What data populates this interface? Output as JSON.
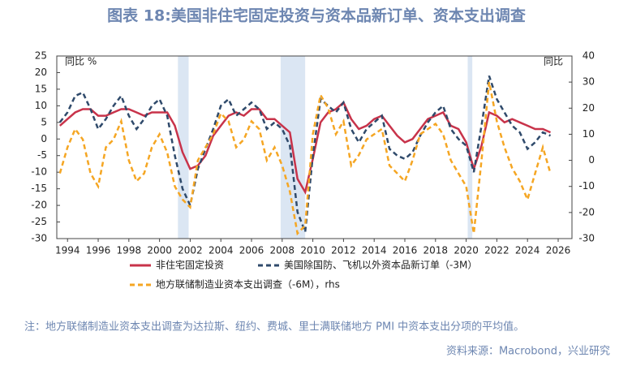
{
  "chart_data": {
    "type": "line",
    "title": "图表 18:美国非住宅固定投资与资本品新订单、资本支出调查",
    "y_label": "同比 %",
    "y2_label": "同比",
    "note": "注：地方联储制造业资本支出调查为达拉斯、纽约、费城、里士满联储地方 PMI 中资本支出分项的平均值。",
    "source": "资料来源：Macrobond，兴业研究",
    "xlim": [
      1993.3,
      2026.9
    ],
    "xticks": [
      1994,
      1996,
      1998,
      2000,
      2002,
      2004,
      2006,
      2008,
      2010,
      2012,
      2014,
      2016,
      2018,
      2020,
      2022,
      2024,
      2026
    ],
    "ylim": [
      -30,
      25
    ],
    "yticks": [
      25,
      20,
      15,
      10,
      5,
      0,
      -5,
      -10,
      -15,
      -20,
      -25,
      -30
    ],
    "y2lim": [
      -30,
      40
    ],
    "y2ticks": [
      40,
      30,
      20,
      10,
      0,
      -10,
      -20,
      -30
    ],
    "shaded_ranges": [
      [
        2001.2,
        2001.9
      ],
      [
        2007.9,
        2009.5
      ],
      [
        2020.1,
        2020.4
      ]
    ],
    "shade_color": "#dbe6f3",
    "x": [
      1993.5,
      1994,
      1994.5,
      1995,
      1995.5,
      1996,
      1996.5,
      1997,
      1997.5,
      1998,
      1998.5,
      1999,
      1999.5,
      2000,
      2000.5,
      2001,
      2001.5,
      2002,
      2002.5,
      2003,
      2003.5,
      2004,
      2004.5,
      2005,
      2005.5,
      2006,
      2006.5,
      2007,
      2007.5,
      2008,
      2008.5,
      2009,
      2009.5,
      2010,
      2010.5,
      2011,
      2011.5,
      2012,
      2012.5,
      2013,
      2013.5,
      2014,
      2014.5,
      2015,
      2015.5,
      2016,
      2016.5,
      2017,
      2017.5,
      2018,
      2018.5,
      2019,
      2019.5,
      2020,
      2020.5,
      2021,
      2021.5,
      2022,
      2022.5,
      2023,
      2023.5,
      2024,
      2024.5,
      2025,
      2025.5
    ],
    "series": [
      {
        "name": "非住宅固定投资",
        "color": "#c8334a",
        "dash": "none",
        "axis": "y",
        "values": [
          4,
          6,
          8,
          9,
          9,
          7,
          7,
          8,
          9,
          9,
          8,
          7,
          8,
          8,
          8,
          4,
          -4,
          -9,
          -8,
          -5,
          1,
          4,
          7,
          8,
          7,
          9,
          9,
          6,
          6,
          4,
          2,
          -12,
          -16,
          -6,
          5,
          8,
          9,
          11,
          6,
          3,
          4,
          6,
          7,
          4,
          1,
          -1,
          0,
          3,
          6,
          7,
          8,
          4,
          3,
          -1,
          -9,
          -2,
          8,
          7,
          5,
          6,
          5,
          4,
          3,
          3,
          2
        ]
      },
      {
        "name": "美国除国防、飞机以外资本品新订单（-3M）",
        "color": "#2f4a6b",
        "dash": "6 4",
        "axis": "y",
        "values": [
          5,
          8,
          13,
          14,
          9,
          3,
          6,
          10,
          13,
          7,
          3,
          6,
          10,
          12,
          7,
          -5,
          -15,
          -20,
          -9,
          -3,
          3,
          10,
          12,
          7,
          9,
          11,
          9,
          3,
          5,
          3,
          -2,
          -22,
          -28,
          -5,
          12,
          10,
          8,
          11,
          3,
          -1,
          3,
          5,
          7,
          -3,
          -5,
          -6,
          -4,
          1,
          5,
          8,
          10,
          3,
          0,
          -2,
          -10,
          4,
          19,
          12,
          8,
          4,
          2,
          -3,
          -1,
          2,
          1
        ]
      },
      {
        "name": "地方联储制造业资本支出调查（-6M），rhs",
        "color": "#f5a623",
        "dash": "6 4",
        "axis": "y2",
        "values": [
          -5,
          5,
          12,
          8,
          -5,
          -10,
          5,
          8,
          15,
          0,
          -8,
          -5,
          5,
          10,
          3,
          -10,
          -15,
          -18,
          0,
          5,
          10,
          18,
          15,
          5,
          8,
          15,
          12,
          0,
          5,
          -2,
          -12,
          -28,
          -25,
          10,
          25,
          20,
          10,
          15,
          -2,
          2,
          8,
          10,
          12,
          -2,
          -5,
          -8,
          0,
          10,
          12,
          14,
          10,
          0,
          -5,
          -10,
          -28,
          0,
          30,
          15,
          5,
          -3,
          -8,
          -15,
          -5,
          5,
          -5
        ]
      }
    ]
  }
}
